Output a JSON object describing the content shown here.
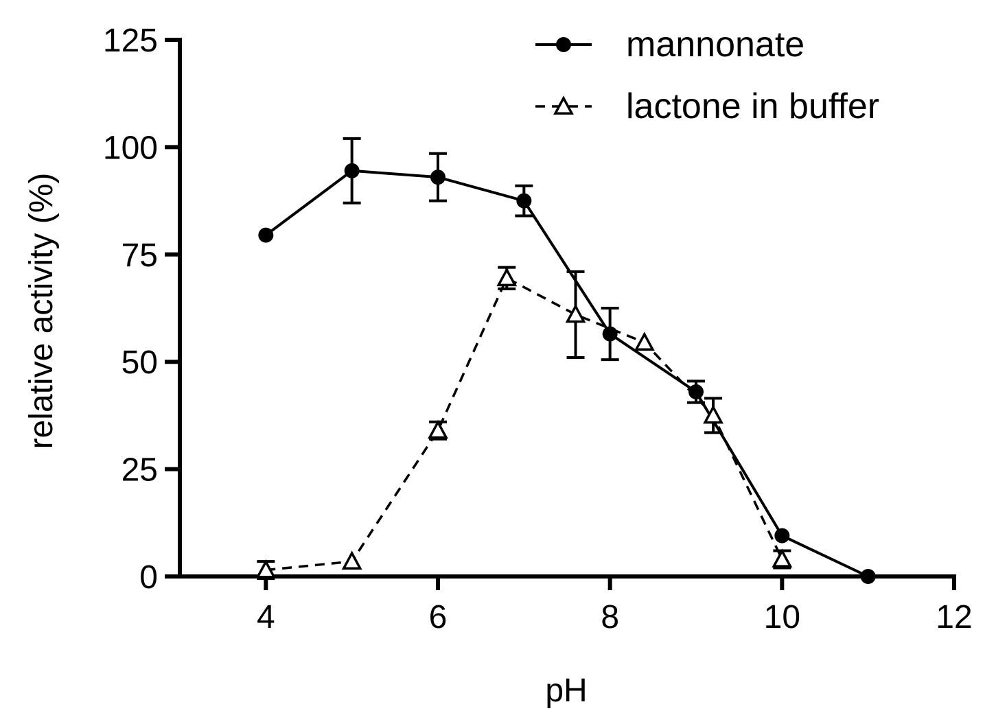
{
  "chart_data": {
    "type": "line",
    "title": "",
    "xlabel": "pH",
    "ylabel": "relative activity (%)",
    "xlim": [
      3,
      12
    ],
    "ylim": [
      0,
      125
    ],
    "xticks": [
      4,
      6,
      8,
      10,
      12
    ],
    "yticks": [
      0,
      25,
      50,
      75,
      100,
      125
    ],
    "grid": false,
    "legend_position": "top-right",
    "series": [
      {
        "name": "mannonate",
        "marker": "circle",
        "line": "solid",
        "x": [
          4,
          5,
          6,
          7,
          8,
          9,
          10,
          11
        ],
        "y": [
          79.5,
          94.5,
          93,
          87.5,
          56.5,
          43,
          9.5,
          0
        ],
        "err": [
          0,
          7.5,
          5.5,
          3.5,
          6,
          2.5,
          0,
          0
        ]
      },
      {
        "name": "lactone in buffer",
        "marker": "triangle-open",
        "line": "dashed",
        "x": [
          4,
          5,
          6,
          6.8,
          7.6,
          8.4,
          9.2,
          10
        ],
        "y": [
          1.5,
          3.5,
          34,
          69.5,
          61,
          54.5,
          37.5,
          4
        ],
        "err": [
          2,
          0,
          2,
          2.5,
          10,
          0,
          4,
          2
        ]
      }
    ]
  }
}
